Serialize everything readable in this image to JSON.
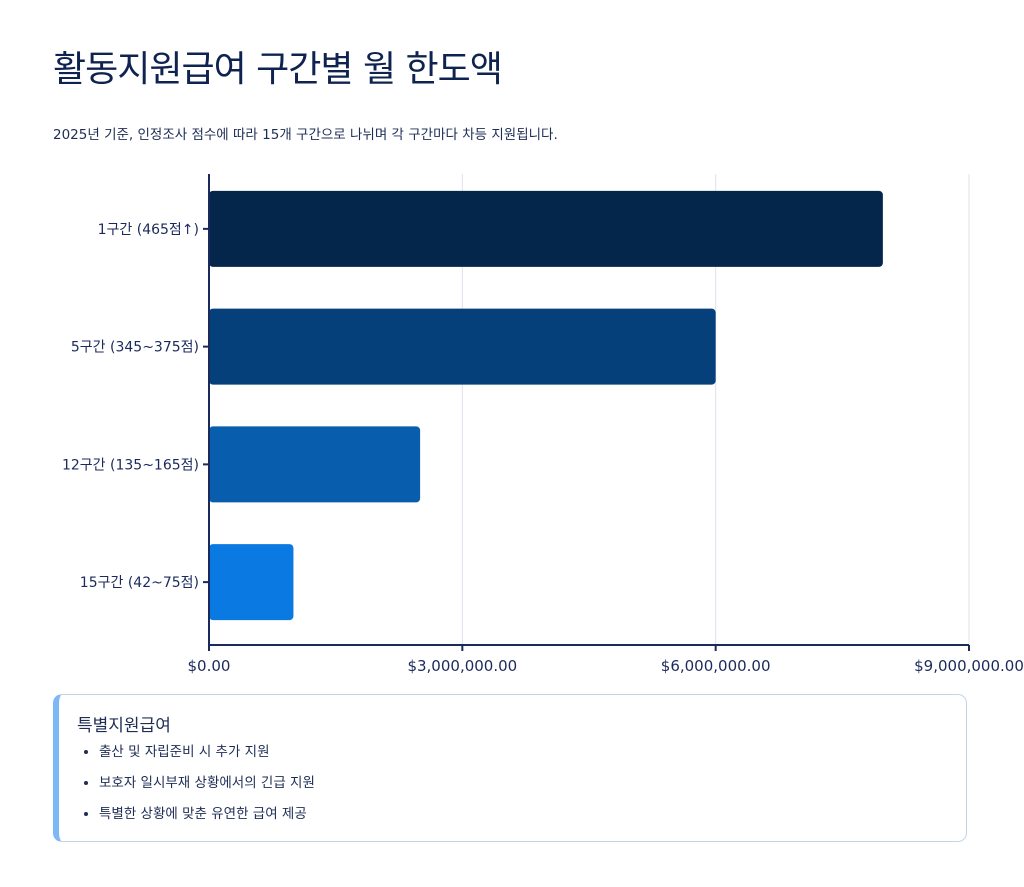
{
  "header": {
    "title": "활동지원급여 구간별 월 한도액",
    "subtitle": "2025년 기준, 인정조사 점수에 따라 15개 구간으로 나뉘며 각 구간마다 차등 지원됩니다."
  },
  "chart_data": {
    "type": "bar",
    "orientation": "horizontal",
    "categories": [
      "1구간 (465점↑)",
      "5구간 (345~375점)",
      "12구간 (135~165점)",
      "15구간 (42~75점)"
    ],
    "values": [
      7980000,
      6000000,
      2500000,
      1000000
    ],
    "colors": [
      "#04264b",
      "#05407a",
      "#085dac",
      "#0a7ae2"
    ],
    "xlim": [
      0,
      9000000
    ],
    "xticks": [
      0,
      3000000,
      6000000,
      9000000
    ],
    "xtick_labels": [
      "$0.00",
      "$3,000,000.00",
      "$6,000,000.00",
      "$9,000,000.00"
    ],
    "grid": true,
    "title": "",
    "xlabel": "",
    "ylabel": ""
  },
  "info": {
    "title": "특별지원급여",
    "items": [
      "출산 및 자립준비 시 추가 지원",
      "보호자 일시부재 상황에서의 긴급 지원",
      "특별한 상황에 맞춘 유연한 급여 제공"
    ]
  }
}
